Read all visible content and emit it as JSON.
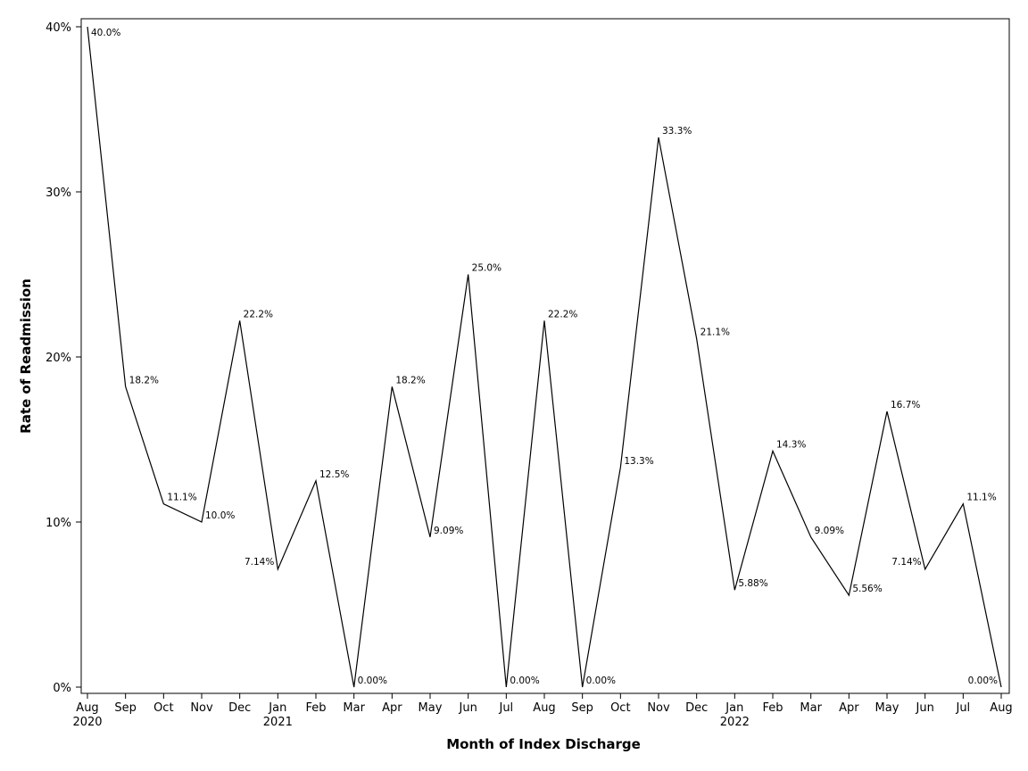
{
  "chart_data": {
    "type": "line",
    "xlabel": "Month of Index Discharge",
    "ylabel": "Rate of Readmission",
    "ylim": [
      0,
      40
    ],
    "yticks": [
      0,
      10,
      20,
      30,
      40
    ],
    "ytick_labels": [
      "0%",
      "10%",
      "20%",
      "30%",
      "40%"
    ],
    "grid": false,
    "categories": [
      "Aug",
      "Sep",
      "Oct",
      "Nov",
      "Dec",
      "Jan",
      "Feb",
      "Mar",
      "Apr",
      "May",
      "Jun",
      "Jul",
      "Aug",
      "Sep",
      "Oct",
      "Nov",
      "Dec",
      "Jan",
      "Feb",
      "Mar",
      "Apr",
      "May",
      "Jun",
      "Jul",
      "Aug"
    ],
    "year_labels": [
      {
        "index": 0,
        "text": "2020"
      },
      {
        "index": 5,
        "text": "2021"
      },
      {
        "index": 17,
        "text": "2022"
      }
    ],
    "values": [
      40.0,
      18.2,
      11.1,
      10.0,
      22.2,
      7.14,
      12.5,
      0.0,
      18.2,
      9.09,
      25.0,
      0.0,
      22.2,
      0.0,
      13.3,
      33.3,
      21.1,
      5.88,
      14.3,
      9.09,
      5.56,
      16.7,
      7.14,
      11.1,
      0.0
    ],
    "data_labels": [
      "40.0%",
      "18.2%",
      "11.1%",
      "10.0%",
      "22.2%",
      "7.14%",
      "12.5%",
      "0.00%",
      "18.2%",
      "9.09%",
      "25.0%",
      "0.00%",
      "22.2%",
      "0.00%",
      "13.3%",
      "33.3%",
      "21.1%",
      "5.88%",
      "14.3%",
      "9.09%",
      "5.56%",
      "16.7%",
      "7.14%",
      "11.1%",
      "0.00%"
    ],
    "line_color": "#000000"
  }
}
